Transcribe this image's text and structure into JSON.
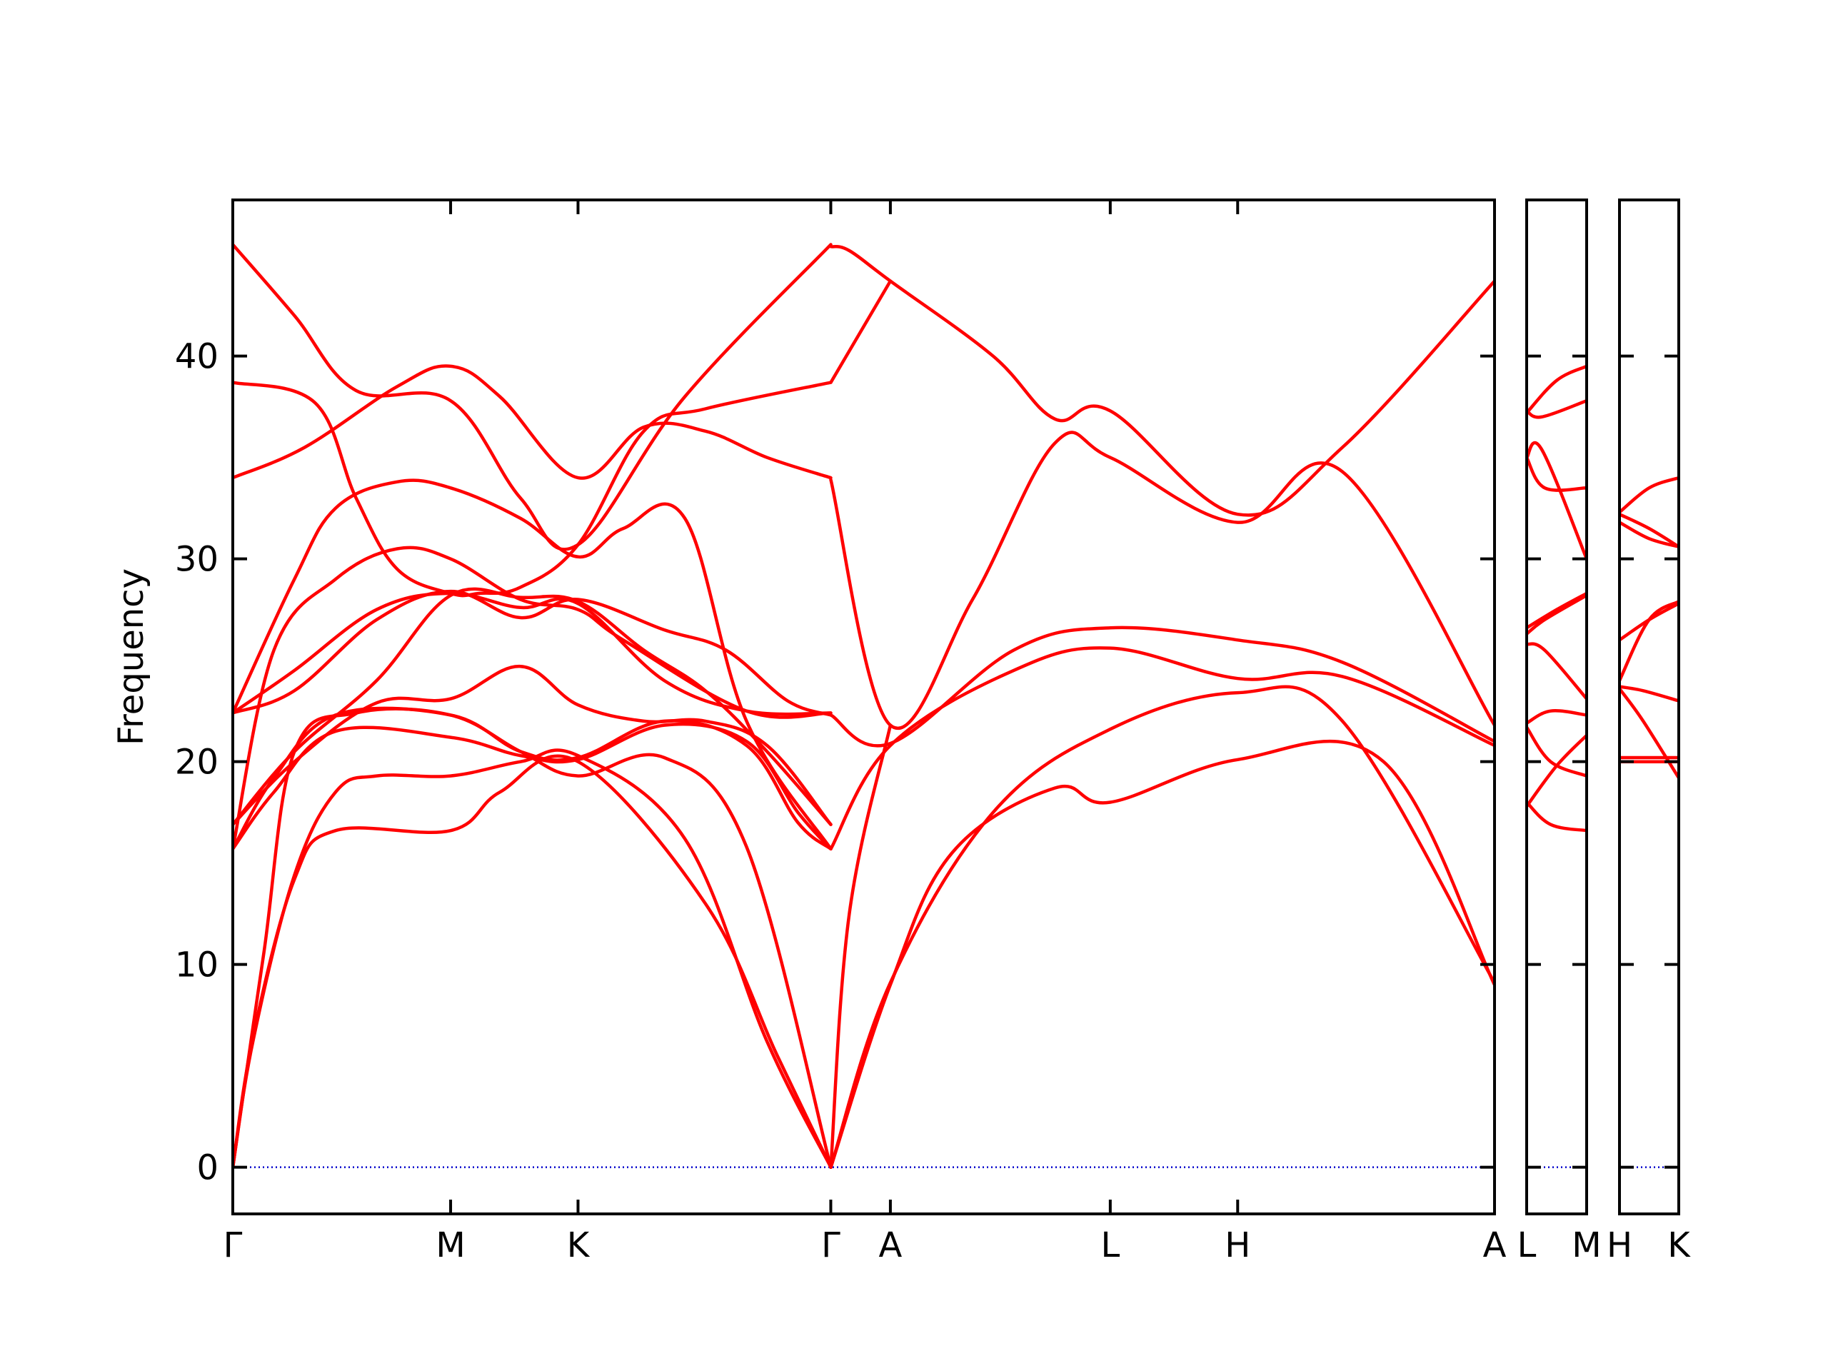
{
  "chart_data": {
    "type": "line",
    "title": "",
    "xlabel": "",
    "ylabel": "Frequency",
    "ylim": [
      -2.3,
      47.7
    ],
    "yticks": [
      0,
      10,
      20,
      30,
      40
    ],
    "ytick_labels": [
      "0",
      "10",
      "20",
      "30",
      "40"
    ],
    "grid": false,
    "legend": "none",
    "colors": {
      "bands": "#ff0000",
      "zero_line": "#0000cc",
      "axes": "#000000"
    },
    "panels": [
      {
        "name": "main",
        "x_range": [
          0,
          6.14
        ],
        "ticks": [
          {
            "x": 0,
            "label": "Γ"
          },
          {
            "x": 1.06,
            "label": "M"
          },
          {
            "x": 1.68,
            "label": "K"
          },
          {
            "x": 2.91,
            "label": "Γ"
          },
          {
            "x": 3.2,
            "label": "A"
          },
          {
            "x": 4.27,
            "label": "L"
          },
          {
            "x": 4.89,
            "label": "H"
          },
          {
            "x": 6.14,
            "label": "A"
          }
        ],
        "bands": [
          {
            "x": [
              0,
              0.1,
              0.3,
              0.5,
              1.06,
              1.3,
              1.68,
              2.3,
              2.65,
              2.91
            ],
            "y": [
              0,
              6.5,
              14.2,
              16.6,
              16.6,
              18.5,
              20.0,
              13.0,
              5.5,
              0
            ]
          },
          {
            "x": [
              0,
              0.1,
              0.3,
              0.5,
              0.7,
              1.06,
              1.4,
              1.68,
              2.2,
              2.6,
              2.91
            ],
            "y": [
              0,
              6.3,
              14.4,
              18.5,
              19.3,
              19.3,
              20.0,
              20.3,
              16.2,
              6.2,
              0
            ]
          },
          {
            "x": [
              0,
              0.15,
              0.3,
              0.6,
              1.06,
              1.4,
              1.68,
              2.1,
              2.5,
              2.91
            ],
            "y": [
              0,
              10.5,
              20.5,
              22.4,
              22.3,
              20.5,
              19.3,
              20.2,
              15.8,
              0
            ]
          },
          {
            "x": [
              0,
              0.2,
              0.5,
              1.06,
              1.4,
              1.68,
              2.1,
              2.5,
              2.75,
              2.91
            ],
            "y": [
              15.7,
              18.5,
              21.5,
              21.2,
              20.3,
              20.1,
              21.8,
              21.0,
              17.5,
              15.7
            ]
          },
          {
            "x": [
              0,
              0.2,
              0.5,
              1.06,
              1.4,
              1.68,
              2.1,
              2.5,
              2.75,
              2.91
            ],
            "y": [
              15.7,
              19.2,
              22.3,
              22.3,
              20.5,
              20.2,
              22.0,
              20.8,
              17.0,
              15.7
            ]
          },
          {
            "x": [
              0,
              0.3,
              0.7,
              1.06,
              1.4,
              1.68,
              2.0,
              2.3,
              2.6,
              2.91
            ],
            "y": [
              16.9,
              20.0,
              22.9,
              23.1,
              24.7,
              22.8,
              22.0,
              22.0,
              20.8,
              16.9
            ]
          },
          {
            "x": [
              0,
              0.3,
              0.7,
              1.06,
              1.4,
              1.68,
              2.0,
              2.3,
              2.6,
              2.91
            ],
            "y": [
              16.9,
              20.5,
              24.0,
              28.2,
              28.1,
              27.9,
              25.5,
              23.5,
              20.5,
              16.9
            ]
          },
          {
            "x": [
              0,
              0.3,
              0.7,
              1.06,
              1.4,
              1.68,
              2.1,
              2.4,
              2.7,
              2.91
            ],
            "y": [
              22.4,
              23.5,
              27.0,
              28.4,
              27.1,
              28.0,
              26.5,
              25.5,
              23.0,
              22.3
            ]
          },
          {
            "x": [
              0,
              0.3,
              0.7,
              1.06,
              1.4,
              1.68,
              2.1,
              2.5,
              2.91
            ],
            "y": [
              22.4,
              24.5,
              27.5,
              28.3,
              27.6,
              27.8,
              24.0,
              22.5,
              22.4
            ]
          },
          {
            "x": [
              0,
              0.35,
              0.8,
              1.06,
              1.3,
              1.68,
              2.0,
              2.3,
              2.6,
              2.91
            ],
            "y": [
              34.0,
              35.5,
              38.5,
              39.5,
              38.0,
              34.0,
              36.5,
              36.3,
              35.0,
              34.0
            ]
          },
          {
            "x": [
              0,
              0.4,
              0.6,
              0.8,
              1.06,
              1.2,
              1.4,
              1.68,
              2.0,
              2.3,
              2.91
            ],
            "y": [
              38.7,
              37.7,
              33.0,
              29.5,
              28.3,
              28.3,
              28.6,
              30.7,
              36.3,
              37.4,
              38.7
            ]
          },
          {
            "x": [
              0,
              0.3,
              0.6,
              1.06,
              1.4,
              1.68,
              2.2,
              2.91
            ],
            "y": [
              45.5,
              42.0,
              38.3,
              37.8,
              33.0,
              30.7,
              38.0,
              45.5
            ]
          },
          {
            "x": [
              0,
              0.3,
              0.5,
              0.8,
              1.06,
              1.4,
              1.68,
              1.9,
              2.2,
              2.5,
              2.91
            ],
            "y": [
              22.4,
              29.0,
              32.5,
              33.8,
              33.5,
              32.0,
              30.1,
              31.5,
              32.0,
              22.0,
              15.7
            ]
          },
          {
            "x": [
              0,
              0.2,
              0.5,
              0.8,
              1.06,
              1.4,
              1.68,
              1.9,
              2.5,
              2.91
            ],
            "y": [
              15.7,
              25.5,
              29.0,
              30.5,
              30.0,
              28.0,
              27.5,
              26.0,
              22.5,
              22.4
            ]
          },
          {
            "x": [
              2.91,
              3.2,
              3.7,
              4.27,
              4.89,
              5.4,
              6.14
            ],
            "y": [
              0,
              9.1,
              17.5,
              21.6,
              23.4,
              22.0,
              9.1
            ]
          },
          {
            "x": [
              2.91,
              3.2,
              3.5,
              4.0,
              4.27,
              4.89,
              5.6,
              6.14
            ],
            "y": [
              0,
              9.0,
              15.5,
              18.7,
              18.0,
              20.1,
              20.0,
              9.0
            ]
          },
          {
            "x": [
              2.91,
              3.2,
              3.8,
              4.27,
              4.89,
              5.4,
              6.14
            ],
            "y": [
              15.7,
              20.8,
              24.5,
              25.6,
              24.1,
              24.2,
              20.8
            ]
          },
          {
            "x": [
              2.91,
              3.2,
              3.8,
              4.27,
              4.89,
              5.4,
              6.14
            ],
            "y": [
              22.3,
              20.9,
              25.5,
              26.6,
              26.0,
              24.9,
              21.0
            ]
          },
          {
            "x": [
              2.91,
              3.2,
              3.6,
              4.0,
              4.27,
              4.89,
              5.4,
              6.14
            ],
            "y": [
              33.9,
              21.8,
              28.0,
              35.7,
              35.0,
              31.8,
              34.3,
              21.8
            ]
          },
          {
            "x": [
              2.91,
              3.0,
              3.2,
              3.7,
              4.0,
              4.27,
              4.89,
              5.4,
              6.14
            ],
            "y": [
              45.4,
              45.2,
              43.7,
              40.0,
              36.9,
              37.3,
              32.2,
              35.5,
              43.7
            ]
          },
          {
            "x": [
              2.91,
              3.0,
              3.2
            ],
            "y": [
              0,
              12.5,
              21.8
            ]
          },
          {
            "x": [
              2.91,
              3.2
            ],
            "y": [
              38.7,
              43.7
            ]
          }
        ]
      },
      {
        "name": "L-M",
        "x_range": [
          0,
          1
        ],
        "ticks": [
          {
            "x": 0,
            "label": "L"
          },
          {
            "x": 1,
            "label": "M"
          }
        ],
        "bands": [
          {
            "x": [
              0,
              0.4,
              1
            ],
            "y": [
              18.0,
              16.9,
              16.6
            ]
          },
          {
            "x": [
              0,
              0.5,
              1
            ],
            "y": [
              17.8,
              19.8,
              21.3
            ]
          },
          {
            "x": [
              0,
              0.4,
              1
            ],
            "y": [
              21.7,
              20.0,
              19.3
            ]
          },
          {
            "x": [
              0,
              0.4,
              1
            ],
            "y": [
              21.9,
              22.5,
              22.3
            ]
          },
          {
            "x": [
              0,
              0.3,
              1
            ],
            "y": [
              25.8,
              25.5,
              23.1
            ]
          },
          {
            "x": [
              0,
              0.5,
              1
            ],
            "y": [
              26.6,
              27.5,
              28.3
            ]
          },
          {
            "x": [
              0,
              0.3,
              1
            ],
            "y": [
              26.3,
              27.0,
              28.2
            ]
          },
          {
            "x": [
              0,
              0.25,
              1
            ],
            "y": [
              35.0,
              35.4,
              30.0
            ]
          },
          {
            "x": [
              0,
              0.3,
              1
            ],
            "y": [
              35.0,
              33.5,
              33.5
            ]
          },
          {
            "x": [
              0,
              0.25,
              1
            ],
            "y": [
              37.3,
              37.0,
              37.8
            ]
          },
          {
            "x": [
              0,
              0.5,
              1
            ],
            "y": [
              37.2,
              38.8,
              39.5
            ]
          }
        ]
      },
      {
        "name": "H-K",
        "x_range": [
          0,
          1
        ],
        "ticks": [
          {
            "x": 0,
            "label": "H"
          },
          {
            "x": 1,
            "label": "K"
          }
        ],
        "bands": [
          {
            "x": [
              0,
              0.5,
              1
            ],
            "y": [
              20.0,
              20.0,
              20.0
            ]
          },
          {
            "x": [
              0,
              0.5,
              1
            ],
            "y": [
              20.2,
              20.2,
              20.2
            ]
          },
          {
            "x": [
              0,
              0.4,
              1
            ],
            "y": [
              23.6,
              22.0,
              19.2
            ]
          },
          {
            "x": [
              0,
              0.4,
              1
            ],
            "y": [
              23.7,
              23.5,
              23.0
            ]
          },
          {
            "x": [
              0,
              0.5,
              1
            ],
            "y": [
              26.0,
              27.0,
              27.8
            ]
          },
          {
            "x": [
              0,
              0.5,
              1
            ],
            "y": [
              24.0,
              27.0,
              27.9
            ]
          },
          {
            "x": [
              0,
              0.5,
              1
            ],
            "y": [
              32.2,
              31.5,
              30.6
            ]
          },
          {
            "x": [
              0,
              0.5,
              1
            ],
            "y": [
              31.8,
              31.0,
              30.6
            ]
          },
          {
            "x": [
              0,
              0.5,
              1
            ],
            "y": [
              32.3,
              33.5,
              34.0
            ]
          }
        ]
      }
    ]
  }
}
